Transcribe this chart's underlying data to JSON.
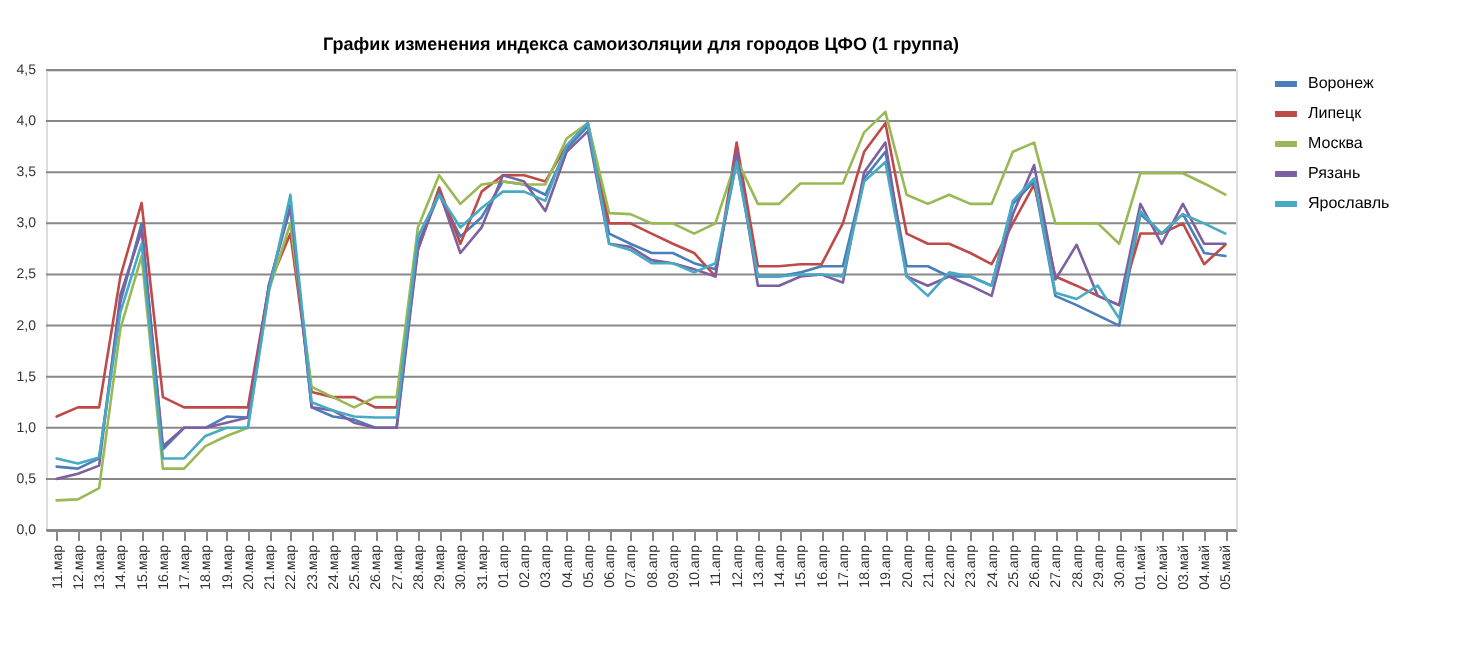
{
  "chart_data": {
    "type": "line",
    "title": "График изменения индекса самоизоляции для городов ЦФО (1 группа)",
    "categories": [
      "11.мар",
      "12.мар",
      "13.мар",
      "14.мар",
      "15.мар",
      "16.мар",
      "17.мар",
      "18.мар",
      "19.мар",
      "20.мар",
      "21.мар",
      "22.мар",
      "23.мар",
      "24.мар",
      "25.мар",
      "26.мар",
      "27.мар",
      "28.мар",
      "29.мар",
      "30.мар",
      "31.мар",
      "01.апр",
      "02.апр",
      "03.апр",
      "04.апр",
      "05.апр",
      "06.апр",
      "07.апр",
      "08.апр",
      "09.апр",
      "10.апр",
      "11.апр",
      "12.апр",
      "13.апр",
      "14.апр",
      "15.апр",
      "16.апр",
      "17.апр",
      "18.апр",
      "19.апр",
      "20.апр",
      "21.апр",
      "22.апр",
      "23.апр",
      "24.апр",
      "25.апр",
      "26.апр",
      "27.апр",
      "28.апр",
      "29.апр",
      "30.апр",
      "01.май",
      "02.май",
      "03.май",
      "04.май",
      "05.май"
    ],
    "series": [
      {
        "name": "Воронеж",
        "color": "#4a7ebb",
        "values": [
          0.62,
          0.6,
          0.7,
          2.23,
          3.0,
          0.79,
          1.0,
          1.0,
          1.11,
          1.1,
          2.4,
          3.15,
          1.2,
          1.11,
          1.08,
          1.0,
          1.0,
          2.8,
          3.28,
          2.87,
          3.06,
          3.41,
          3.38,
          3.28,
          3.73,
          3.95,
          2.9,
          2.8,
          2.71,
          2.71,
          2.61,
          2.55,
          3.6,
          2.48,
          2.48,
          2.52,
          2.58,
          2.58,
          3.44,
          3.7,
          2.58,
          2.58,
          2.48,
          2.48,
          2.39,
          3.19,
          3.41,
          2.29,
          2.2,
          2.1,
          2.0,
          3.09,
          2.9,
          3.09,
          2.71,
          2.68
        ]
      },
      {
        "name": "Липецк",
        "color": "#be4b48",
        "values": [
          1.11,
          1.2,
          1.2,
          2.48,
          3.2,
          1.3,
          1.2,
          1.2,
          1.2,
          1.2,
          2.4,
          2.9,
          1.35,
          1.3,
          1.3,
          1.2,
          1.2,
          2.74,
          3.35,
          2.8,
          3.31,
          3.47,
          3.47,
          3.41,
          3.76,
          3.98,
          3.0,
          3.0,
          2.9,
          2.8,
          2.71,
          2.48,
          3.79,
          2.58,
          2.58,
          2.6,
          2.6,
          3.0,
          3.7,
          3.98,
          2.9,
          2.8,
          2.8,
          2.71,
          2.6,
          3.0,
          3.38,
          2.48,
          2.39,
          2.29,
          2.2,
          2.9,
          2.9,
          3.0,
          2.6,
          2.79
        ]
      },
      {
        "name": "Москва",
        "color": "#98b954",
        "values": [
          0.29,
          0.3,
          0.41,
          1.97,
          2.68,
          0.6,
          0.6,
          0.82,
          0.92,
          1.0,
          2.35,
          3.0,
          1.4,
          1.3,
          1.2,
          1.3,
          1.3,
          2.96,
          3.47,
          3.19,
          3.38,
          3.41,
          3.38,
          3.38,
          3.83,
          3.98,
          3.1,
          3.09,
          3.0,
          3.0,
          2.9,
          3.0,
          3.63,
          3.19,
          3.19,
          3.39,
          3.39,
          3.39,
          3.89,
          4.09,
          3.28,
          3.19,
          3.28,
          3.19,
          3.19,
          3.7,
          3.79,
          3.0,
          3.0,
          3.0,
          2.8,
          3.49,
          3.49,
          3.49,
          3.39,
          3.28
        ]
      },
      {
        "name": "Рязань",
        "color": "#7d60a0",
        "values": [
          0.5,
          0.55,
          0.63,
          2.3,
          2.93,
          0.82,
          1.0,
          1.0,
          1.05,
          1.1,
          2.4,
          3.18,
          1.2,
          1.17,
          1.05,
          1.0,
          1.0,
          2.74,
          3.31,
          2.71,
          2.96,
          3.47,
          3.41,
          3.12,
          3.7,
          3.9,
          2.8,
          2.77,
          2.64,
          2.61,
          2.55,
          2.48,
          3.7,
          2.39,
          2.39,
          2.48,
          2.5,
          2.42,
          3.5,
          3.79,
          2.48,
          2.39,
          2.48,
          2.39,
          2.29,
          3.09,
          3.57,
          2.45,
          2.79,
          2.29,
          2.2,
          3.19,
          2.8,
          3.19,
          2.8,
          2.8
        ]
      },
      {
        "name": "Ярославль",
        "color": "#46aac5",
        "values": [
          0.7,
          0.65,
          0.71,
          2.13,
          2.8,
          0.7,
          0.7,
          0.92,
          1.0,
          1.0,
          2.35,
          3.28,
          1.25,
          1.17,
          1.11,
          1.1,
          1.1,
          2.87,
          3.28,
          2.96,
          3.15,
          3.31,
          3.31,
          3.22,
          3.76,
          3.98,
          2.8,
          2.74,
          2.61,
          2.61,
          2.52,
          2.61,
          3.6,
          2.48,
          2.48,
          2.5,
          2.5,
          2.48,
          3.41,
          3.6,
          2.48,
          2.29,
          2.52,
          2.48,
          2.39,
          3.22,
          3.44,
          2.32,
          2.26,
          2.39,
          2.07,
          3.12,
          2.9,
          3.09,
          3.0,
          2.9
        ]
      }
    ],
    "ylim": [
      0,
      4.5
    ],
    "yticks": [
      {
        "value": 0,
        "label": "0,0"
      },
      {
        "value": 0.5,
        "label": "0,5"
      },
      {
        "value": 1,
        "label": "1,0"
      },
      {
        "value": 1.5,
        "label": "1,5"
      },
      {
        "value": 2,
        "label": "2,0"
      },
      {
        "value": 2.5,
        "label": "2,5"
      },
      {
        "value": 3,
        "label": "3,0"
      },
      {
        "value": 3.5,
        "label": "3,5"
      },
      {
        "value": 4,
        "label": "4,0"
      },
      {
        "value": 4.5,
        "label": "4,5"
      }
    ],
    "grid": "y",
    "legend": "right",
    "marker": "none",
    "line_style": "solid"
  }
}
